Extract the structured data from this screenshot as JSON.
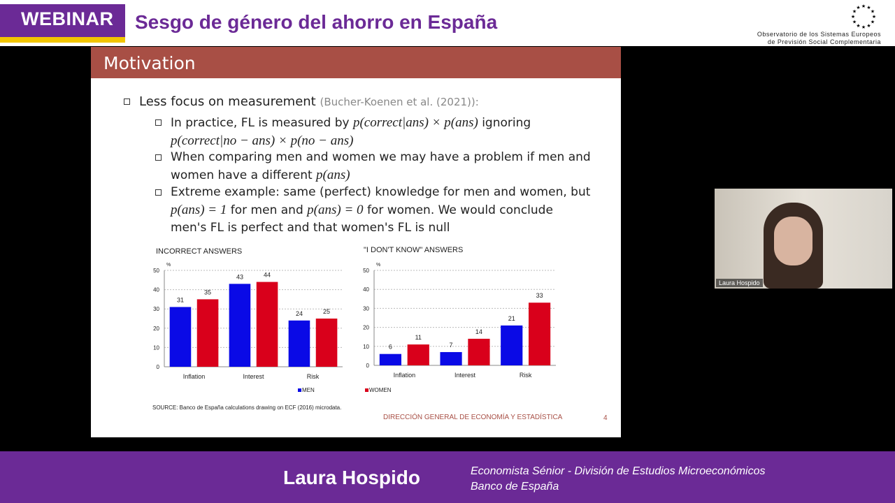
{
  "banner": {
    "badge": "WEBINAR",
    "title": "Sesgo de género del ahorro en España",
    "org_line1": "Observatorio de los Sistemas Europeos",
    "org_line2": "de Previsión Social Complementaria"
  },
  "slide": {
    "title": "Motivation",
    "bullet1": "Less focus on measurement",
    "bullet1_cite": "(Bucher-Koenen et al. (2021)):",
    "sub1_a": "In practice, FL is measured by",
    "sub1_m1": "p(correct|ans) × p(ans)",
    "sub1_b": "ignoring",
    "sub1_m2": "p(correct|no − ans) × p(no − ans)",
    "sub2_a": "When comparing men and women we may have a problem if men and",
    "sub2_b": "women have a different",
    "sub2_m": "p(ans)",
    "sub3_a": "Extreme example: same (perfect) knowledge for men and women, but",
    "sub3_m1": "p(ans) = 1",
    "sub3_b": "for men and",
    "sub3_m2": "p(ans) = 0",
    "sub3_c": "for women. We would conclude",
    "sub3_d": "men's FL is perfect and that women's FL is null",
    "source": "SOURCE: Banco de España calculations drawing on ECF (2016) microdata.",
    "footer": "DIRECCIÓN GENERAL DE ECONOMÍA Y ESTADÍSTICA",
    "page": "4"
  },
  "chart_data": [
    {
      "type": "bar",
      "title": "INCORRECT ANSWERS",
      "ylabel": "%",
      "ylim": [
        0,
        50
      ],
      "yticks": [
        0,
        10,
        20,
        30,
        40,
        50
      ],
      "grid": true,
      "categories": [
        "Inflation",
        "Interest",
        "Risk"
      ],
      "series": [
        {
          "name": "MEN",
          "color": "#0a0ae6",
          "values": [
            31,
            43,
            24
          ]
        },
        {
          "name": "WOMEN",
          "color": "#d9001b",
          "values": [
            35,
            44,
            25
          ]
        }
      ]
    },
    {
      "type": "bar",
      "title": "\"I DON'T KNOW\" ANSWERS",
      "ylabel": "%",
      "ylim": [
        0,
        50
      ],
      "yticks": [
        0,
        10,
        20,
        30,
        40,
        50
      ],
      "grid": true,
      "categories": [
        "Inflation",
        "Interest",
        "Risk"
      ],
      "series": [
        {
          "name": "MEN",
          "color": "#0a0ae6",
          "values": [
            6,
            7,
            21
          ]
        },
        {
          "name": "WOMEN",
          "color": "#d9001b",
          "values": [
            11,
            14,
            33
          ]
        }
      ]
    }
  ],
  "speaker": {
    "name": "Laura Hospido",
    "role_line1": "Economista Sénior - División de Estudios Microeconómicos",
    "role_line2": "Banco de España"
  },
  "video": {
    "participant": "Laura Hospido"
  }
}
